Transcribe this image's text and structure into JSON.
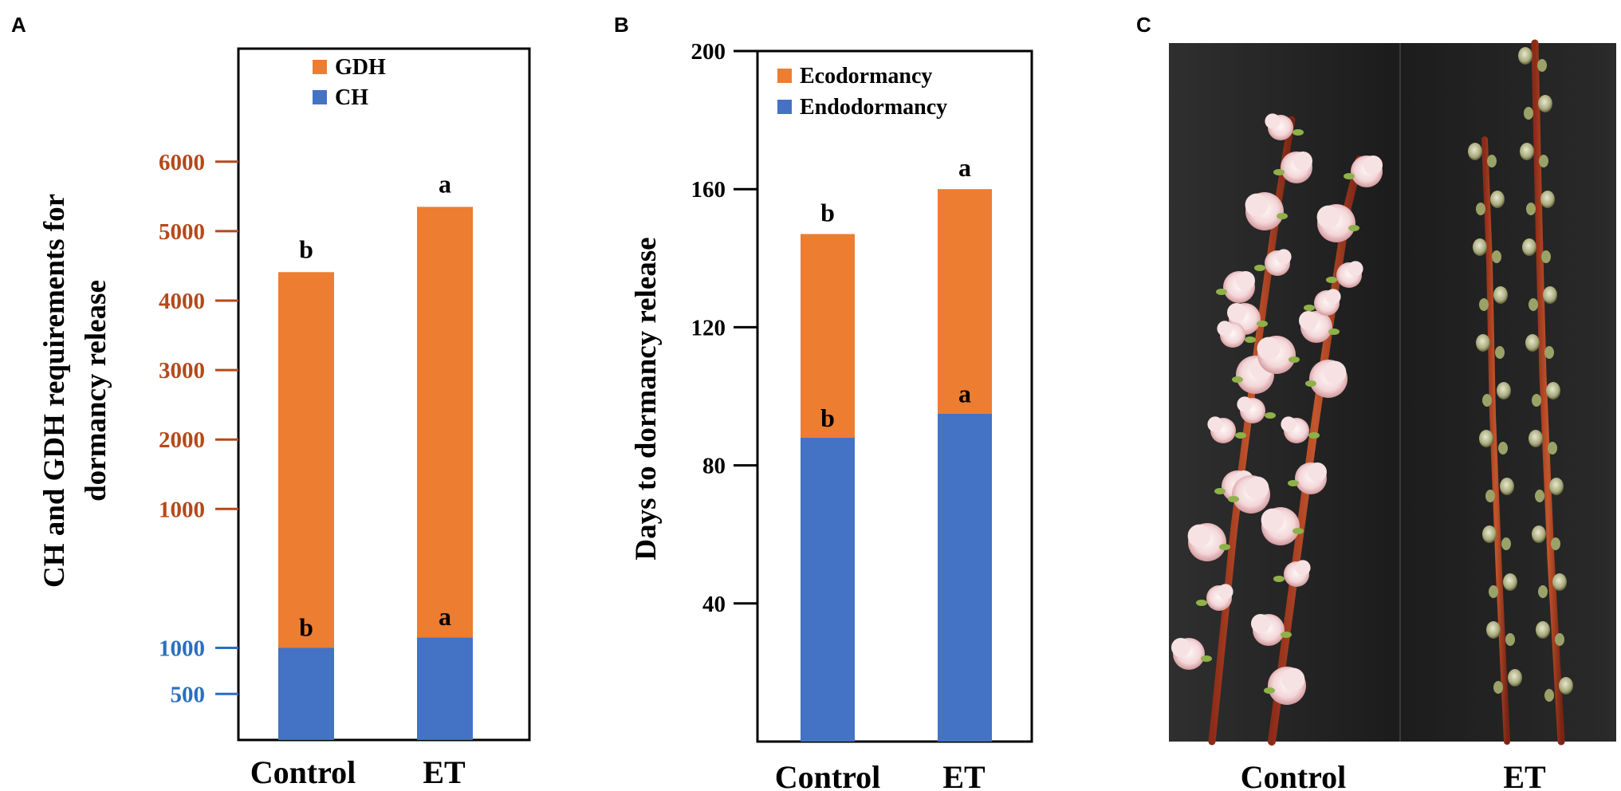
{
  "colors": {
    "ecodormancy": "#ED7D31",
    "endodormancy": "#4472C4",
    "tick_orange": "#B5491A",
    "tick_blue": "#2A6FC0"
  },
  "chart_data": [
    {
      "panel": "A",
      "type": "bar",
      "stacked": true,
      "categories": [
        "Control",
        "ET"
      ],
      "series": [
        {
          "name": "CH",
          "values": [
            1000,
            1115
          ],
          "letters": [
            "b",
            "a"
          ]
        },
        {
          "name": "GDH",
          "values": [
            3410,
            4235
          ],
          "letters": [
            "b",
            "a"
          ]
        }
      ],
      "totals": [
        4410,
        5350
      ],
      "ylabel_lines": [
        "CH and GDH requirements for",
        "dormancy release"
      ],
      "yticks_ch": [
        "500",
        "1000"
      ],
      "yticks_gdh": [
        "1000",
        "2000",
        "3000",
        "4000",
        "5000",
        "6000"
      ],
      "legend": [
        "GDH",
        "CH"
      ],
      "legend_position": "top-center"
    },
    {
      "panel": "B",
      "type": "bar",
      "stacked": true,
      "categories": [
        "Control",
        "ET"
      ],
      "series": [
        {
          "name": "Endodormancy",
          "values": [
            88,
            95
          ],
          "letters": [
            "b",
            "a"
          ]
        },
        {
          "name": "Ecodormancy",
          "values": [
            59,
            65
          ],
          "letters": [
            "b",
            "a"
          ]
        }
      ],
      "totals": [
        147,
        160
      ],
      "ylabel": "Days to dormancy release",
      "ylim": [
        0,
        200
      ],
      "yticks": [
        "40",
        "80",
        "120",
        "160",
        "200"
      ],
      "legend": [
        "Ecodormancy",
        "Endodormancy"
      ],
      "legend_position": "top-center"
    }
  ],
  "photo": {
    "panel": "C",
    "labels": [
      "Control",
      "ET"
    ]
  }
}
